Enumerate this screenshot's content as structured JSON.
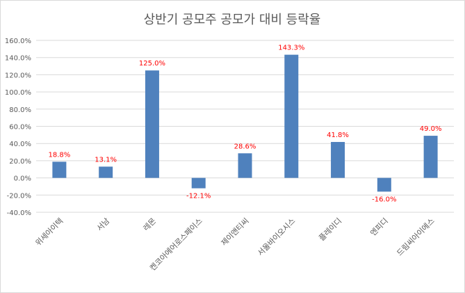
{
  "chart_data": {
    "type": "bar",
    "title": "상반기 공모주 공모가 대비 등락율",
    "xlabel": "",
    "ylabel": "",
    "categories": [
      "위세아이텍",
      "서남",
      "레몬",
      "켄코아에어로스페이스",
      "제이앤티씨",
      "서울바이오시스",
      "플레이디",
      "엔피디",
      "드림씨아이에스"
    ],
    "values": [
      18.8,
      13.1,
      125.0,
      -12.1,
      28.6,
      143.3,
      41.8,
      -16.0,
      49.0
    ],
    "data_labels": [
      "18.8%",
      "13.1%",
      "125.0%",
      "-12.1%",
      "28.6%",
      "143.3%",
      "41.8%",
      "-16.0%",
      "49.0%"
    ],
    "ylim": [
      -40,
      160
    ],
    "yticks": [
      -40,
      -20,
      0,
      20,
      40,
      60,
      80,
      100,
      120,
      140,
      160
    ],
    "ytick_labels": [
      "-40.0%",
      "-20.0%",
      "0.0%",
      "20.0%",
      "40.0%",
      "60.0%",
      "80.0%",
      "100.0%",
      "120.0%",
      "140.0%",
      "160.0%"
    ],
    "grid": true,
    "legend": "none",
    "colors": {
      "bar": "#4f81bd",
      "data_label": "#ff0000",
      "grid": "#d9d9d9",
      "text": "#595959"
    }
  }
}
